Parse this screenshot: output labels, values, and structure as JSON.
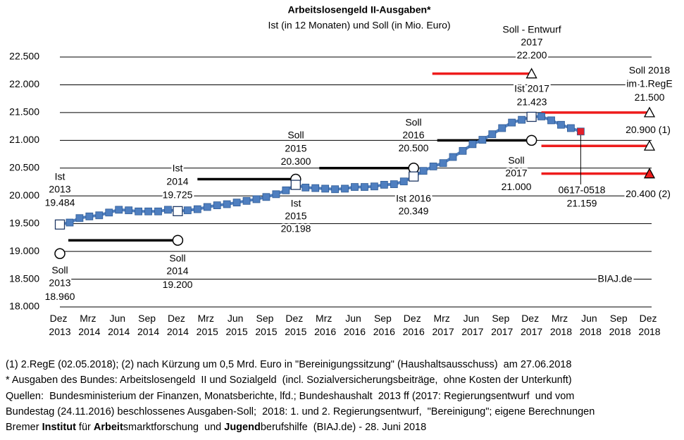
{
  "chart_data": {
    "type": "line",
    "title": "Arbeitslosengeld  II-Ausgaben*",
    "subtitle": "Ist (in 12 Monaten) und Soll (in Mio. Euro)",
    "categories": [
      "Dez 2013",
      null,
      null,
      "Mrz 2014",
      null,
      null,
      "Jun 2014",
      null,
      null,
      "Sep 2014",
      null,
      null,
      "Dez 2014",
      null,
      null,
      "Mrz 2015",
      null,
      null,
      "Jun 2015",
      null,
      null,
      "Sep 2015",
      null,
      null,
      "Dez 2015",
      null,
      null,
      "Mrz 2016",
      null,
      null,
      "Jun 2016",
      null,
      null,
      "Sep 2016",
      null,
      null,
      "Dez 2016",
      null,
      null,
      "Mrz 2017",
      null,
      null,
      "Jun 2017",
      null,
      null,
      "Sep 2017",
      null,
      null,
      "Dez 2017",
      null,
      null,
      "Mrz 2018",
      null,
      null,
      "Jun 2018",
      null,
      null,
      "Sep 2018",
      null,
      null,
      "Dez 2018"
    ],
    "series": [
      {
        "color": "#4f7fc0",
        "latest_color": "#e3202a",
        "values": [
          19484,
          19520,
          19600,
          19630,
          19650,
          19700,
          19750,
          19740,
          19720,
          19720,
          19720,
          19750,
          19725,
          19740,
          19760,
          19800,
          19830,
          19850,
          19880,
          19910,
          19940,
          19980,
          20030,
          20100,
          20198,
          20150,
          20140,
          20130,
          20120,
          20130,
          20160,
          20160,
          20170,
          20200,
          20210,
          20260,
          20349,
          20450,
          20530,
          20590,
          20700,
          20810,
          20930,
          21010,
          21110,
          21220,
          21320,
          21370,
          21423,
          21430,
          21360,
          21280,
          21220,
          21159,
          null,
          null,
          null,
          null,
          null,
          null,
          null
        ],
        "value_labels": [
          "19.484",
          null,
          null,
          null,
          null,
          null,
          null,
          null,
          null,
          null,
          null,
          null,
          "19.725",
          null,
          null,
          null,
          null,
          null,
          null,
          null,
          null,
          null,
          null,
          null,
          "20.198",
          null,
          null,
          null,
          null,
          null,
          null,
          null,
          null,
          null,
          null,
          null,
          "20.349",
          null,
          null,
          null,
          null,
          null,
          null,
          null,
          null,
          null,
          null,
          null,
          "21.423",
          null,
          null,
          null,
          null,
          "21.159",
          null,
          null,
          null,
          null,
          null,
          null,
          null
        ]
      }
    ],
    "annotations": [
      {
        "lines": [
          "Ist",
          "2013"
        ]
      },
      {
        "lines": [
          "Ist",
          "2014"
        ]
      },
      {
        "lines": [
          "Ist",
          "2015"
        ]
      },
      {
        "lines": [
          "Ist 2016"
        ]
      },
      {
        "lines": [
          "Ist 2017"
        ]
      },
      {
        "lines": [
          "0617-0518"
        ]
      }
    ],
    "targets": [
      {
        "lines": [
          "Soll",
          "2013"
        ],
        "value": 18960,
        "value_label": "18.960",
        "color": "#000000",
        "marker": "circle"
      },
      {
        "lines": [
          "Soll",
          "2014"
        ],
        "value": 19200,
        "value_label": "19.200",
        "color": "#000000",
        "marker": "circle"
      },
      {
        "lines": [
          "Soll",
          "2015"
        ],
        "value": 20300,
        "value_label": "20.300",
        "color": "#000000",
        "marker": "circle"
      },
      {
        "lines": [
          "Soll",
          "2016"
        ],
        "value": 20500,
        "value_label": "20.500",
        "color": "#000000",
        "marker": "circle"
      },
      {
        "lines": [
          "Soll",
          "2017"
        ],
        "value": 21000,
        "value_label": "21.000",
        "color": "#000000",
        "marker": "circle"
      },
      {
        "lines": [
          "Soll - Entwurf",
          "2017"
        ],
        "value": 22200,
        "value_label": "22.200",
        "color": "#ee1c1c",
        "marker": "triangle"
      },
      {
        "lines": [
          "Soll  2018",
          "im 1.RegE"
        ],
        "value": 21500,
        "value_label": "21.500",
        "color": "#ee1c1c",
        "marker": "triangle"
      },
      {
        "lines": [],
        "value": 20900,
        "value_label": "20.900",
        "note": "(1)",
        "color": "#ee1c1c",
        "marker": "triangle"
      },
      {
        "lines": [],
        "value": 20400,
        "value_label": "20.400",
        "note": "(2)",
        "color": "#ee1c1c",
        "marker": "triangle-filled"
      }
    ],
    "ylim": [
      18000,
      22500
    ],
    "yticks": [
      {
        "value": 18000,
        "label": "18.000"
      },
      {
        "value": 18500,
        "label": "18.500"
      },
      {
        "value": 19000,
        "label": "19.000"
      },
      {
        "value": 19500,
        "label": "19.500"
      },
      {
        "value": 20000,
        "label": "20.000"
      },
      {
        "value": 20500,
        "label": "20.500"
      },
      {
        "value": 21000,
        "label": "21.000"
      },
      {
        "value": 21500,
        "label": "21.500"
      },
      {
        "value": 22000,
        "label": "22.000"
      },
      {
        "value": 22500,
        "label": "22.500"
      }
    ],
    "grid": true,
    "watermark": "BIAJ.de",
    "footer": [
      "(1) 2.RegE (02.05.2018); (2) nach Kürzung um 0,5 Mrd. Euro in \"Bereinigungssitzung\" (Haushaltsausschuss)  am 27.06.2018",
      "* Ausgaben des Bundes: Arbeitslosengeld  II und Sozialgeld  (incl. Sozialversicherungsbeiträge,  ohne Kosten der Unterkunft)",
      "Quellen:  Bundesministerium der Finanzen, Monatsberichte, lfd.; Bundeshaushalt  2013 ff (2017: Regierungsentwurf  und vom",
      "Bundestag (24.11.2016) beschlossenes Ausgaben-Soll;  2018: 1. und 2. Regierungsentwurf,  \"Bereinigung\"; eigene Berechnungen"
    ],
    "credit": [
      {
        "text": "Bremer ",
        "bold": false
      },
      {
        "text": "Institut",
        "bold": true
      },
      {
        "text": " für ",
        "bold": false
      },
      {
        "text": "Arbeit",
        "bold": true
      },
      {
        "text": "smarktforschung  und ",
        "bold": false
      },
      {
        "text": "Jugend",
        "bold": true
      },
      {
        "text": "berufshilfe  (BIAJ.de) - 28. Juni 2018",
        "bold": false
      }
    ]
  }
}
